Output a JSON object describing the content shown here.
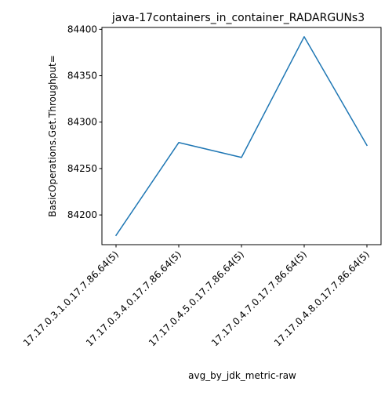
{
  "chart_data": {
    "type": "line",
    "title": "java-17containers_in_container_RADARGUNs3",
    "xlabel": "avg_by_jdk_metric-raw",
    "ylabel": "BasicOperations.Get.Throughput=",
    "categories": [
      "17.17.0.3.1.0.17.7.86.64(5)",
      "17.17.0.3.4.0.17.7.86.64(5)",
      "17.17.0.4.5.0.17.7.86.64(5)",
      "17.17.0.4.7.0.17.7.86.64(5)",
      "17.17.0.4.8.0.17.7.86.64(5)"
    ],
    "series": [
      {
        "values": [
          84178,
          84278,
          84262,
          84392,
          84275
        ],
        "color": "#1f77b4"
      }
    ],
    "ylim": [
      84168,
      84402
    ],
    "yticks": [
      84200,
      84250,
      84300,
      84350,
      84400
    ],
    "grid": false,
    "legend": "none"
  }
}
